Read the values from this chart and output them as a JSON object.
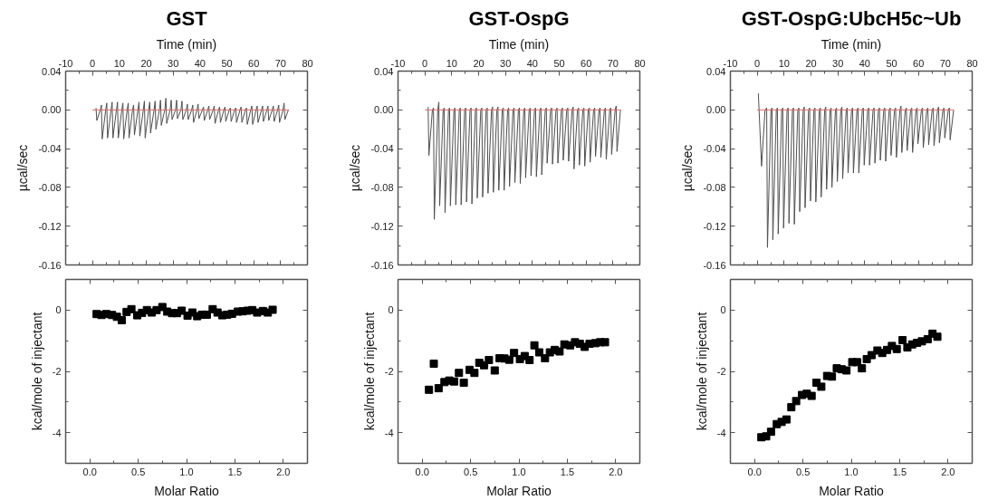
{
  "chart_data": [
    {
      "type": "line",
      "title": "GST",
      "xlabel": "Time (min)",
      "ylabel": "µcal/sec",
      "xlim": [
        -10,
        80
      ],
      "xticks": [
        -10,
        {
          "value": -5,
          "label": null
        },
        0,
        {
          "value": 5,
          "label": null
        },
        10,
        {
          "value": 15,
          "label": null
        },
        20,
        {
          "value": 25,
          "label": null
        },
        30,
        {
          "value": 35,
          "label": null
        },
        40,
        {
          "value": 45,
          "label": null
        },
        50,
        {
          "value": 55,
          "label": null
        },
        60,
        {
          "value": 65,
          "label": null
        },
        70,
        {
          "value": 75,
          "label": null
        },
        80
      ],
      "ylim": [
        -0.16,
        0.04
      ],
      "yticks": [
        -0.16,
        {
          "value": -0.14,
          "label": null
        },
        -0.12,
        {
          "value": -0.1,
          "label": null
        },
        -0.08,
        {
          "value": -0.06,
          "label": null
        },
        -0.04,
        {
          "value": -0.02,
          "label": null
        },
        {
          "value": 0,
          "label": "0.00"
        },
        {
          "value": 0.02,
          "label": null
        },
        0.04
      ],
      "series": [
        {
          "color": "#505050",
          "x": [
            1.3,
            1.6,
            2.9,
            3.3,
            3.6,
            4.9,
            5.3,
            5.6,
            6.9,
            7.3,
            7.6,
            8.9,
            9.3,
            9.6,
            10.9,
            11.3,
            11.6,
            12.9,
            13.3,
            13.6,
            14.9,
            15.3,
            15.6,
            16.9,
            17.3,
            17.6,
            18.9,
            19.3,
            19.6,
            20.9,
            21.3,
            21.6,
            22.9,
            23.3,
            23.6,
            24.9,
            25.3,
            25.6,
            26.9,
            27.3,
            27.6,
            28.9,
            29.3,
            29.6,
            30.9,
            31.3,
            31.6,
            32.9,
            33.3,
            33.6,
            34.9,
            35.3,
            35.6,
            36.9,
            37.3,
            37.6,
            38.9,
            39.3,
            39.6,
            40.9,
            41.3,
            41.6,
            42.9,
            43.3,
            43.6,
            44.9,
            45.3,
            45.6,
            46.9,
            47.3,
            47.6,
            48.9,
            49.3,
            49.6,
            50.9,
            51.3,
            51.6,
            52.9,
            53.3,
            53.6,
            54.9,
            55.3,
            55.6,
            56.9,
            57.3,
            57.6,
            58.9,
            59.3,
            59.6,
            60.9,
            61.3,
            61.6,
            62.9,
            63.3,
            63.6,
            64.9,
            65.3,
            65.6,
            66.9,
            67.3,
            67.6,
            68.9,
            69.3,
            69.6,
            70.9,
            71.3,
            71.6,
            72.9
          ],
          "values": [
            0.002,
            -0.011,
            0,
            0.005,
            -0.03,
            0,
            0.007,
            -0.029,
            0,
            0.008,
            -0.029,
            0,
            0.008,
            -0.029,
            0,
            0.007,
            -0.03,
            0,
            0.007,
            -0.029,
            0,
            0.005,
            -0.026,
            0,
            0.008,
            -0.027,
            0,
            0.009,
            -0.029,
            0,
            0.008,
            -0.024,
            0,
            0.009,
            -0.02,
            0,
            0.01,
            -0.016,
            0,
            0.012,
            -0.014,
            0,
            0.01,
            -0.01,
            0,
            0.01,
            -0.009,
            0,
            0.009,
            -0.01,
            0,
            0.006,
            -0.01,
            0,
            0.005,
            -0.013,
            0,
            0.006,
            -0.009,
            0,
            0.003,
            -0.011,
            0,
            0.004,
            -0.01,
            0,
            0.004,
            -0.014,
            0,
            0.003,
            -0.013,
            0,
            0.003,
            -0.012,
            0,
            0.002,
            -0.012,
            0,
            0.002,
            -0.013,
            0,
            0.003,
            -0.013,
            0,
            0.002,
            -0.015,
            0,
            0.004,
            -0.015,
            0,
            0.004,
            -0.013,
            0,
            0.004,
            -0.012,
            0,
            0.004,
            -0.011,
            0,
            0.004,
            -0.012,
            0,
            0.005,
            -0.013,
            0,
            0.007,
            -0.01,
            0
          ]
        },
        {
          "color": "#e06666",
          "x": [
            0,
            73
          ],
          "values": [
            0,
            0
          ]
        }
      ]
    },
    {
      "type": "line",
      "title": "GST-OspG",
      "xlabel": "Time (min)",
      "ylabel": "µcal/sec",
      "xlim": [
        -10,
        80
      ],
      "xticks": [
        -10,
        {
          "value": -5,
          "label": null
        },
        0,
        {
          "value": 5,
          "label": null
        },
        10,
        {
          "value": 15,
          "label": null
        },
        20,
        {
          "value": 25,
          "label": null
        },
        30,
        {
          "value": 35,
          "label": null
        },
        40,
        {
          "value": 45,
          "label": null
        },
        50,
        {
          "value": 55,
          "label": null
        },
        60,
        {
          "value": 65,
          "label": null
        },
        70,
        {
          "value": 75,
          "label": null
        },
        80
      ],
      "ylim": [
        -0.16,
        0.04
      ],
      "yticks": [
        -0.16,
        {
          "value": -0.14,
          "label": null
        },
        -0.12,
        {
          "value": -0.1,
          "label": null
        },
        -0.08,
        {
          "value": -0.06,
          "label": null
        },
        -0.04,
        {
          "value": -0.02,
          "label": null
        },
        {
          "value": 0,
          "label": "0.00"
        },
        {
          "value": 0.02,
          "label": null
        },
        0.04
      ],
      "series": [
        {
          "color": "#505050",
          "x": [
            1.2,
            1.5,
            2.8,
            3.2,
            3.5,
            4.8,
            5.2,
            5.5,
            6.8,
            7.2,
            7.5,
            8.8,
            9.2,
            9.5,
            10.8,
            11.2,
            11.5,
            12.8,
            13.2,
            13.5,
            14.8,
            15.2,
            15.5,
            16.8,
            17.2,
            17.5,
            18.8,
            19.2,
            19.5,
            20.8,
            21.2,
            21.5,
            22.8,
            23.2,
            23.5,
            24.8,
            25.2,
            25.5,
            26.8,
            27.2,
            27.5,
            28.8,
            29.2,
            29.5,
            30.8,
            31.2,
            31.5,
            32.8,
            33.2,
            33.5,
            34.8,
            35.2,
            35.5,
            36.8,
            37.2,
            37.5,
            38.8,
            39.2,
            39.5,
            40.8,
            41.2,
            41.5,
            42.8,
            43.2,
            43.5,
            44.8,
            45.2,
            45.5,
            46.8,
            47.2,
            47.5,
            48.8,
            49.2,
            49.5,
            50.8,
            51.2,
            51.5,
            52.8,
            53.2,
            53.5,
            54.8,
            55.2,
            55.5,
            56.8,
            57.2,
            57.5,
            58.8,
            59.2,
            59.5,
            60.8,
            61.2,
            61.5,
            62.8,
            63.2,
            63.5,
            64.8,
            65.2,
            65.5,
            66.8,
            67.2,
            67.5,
            68.8,
            69.2,
            69.5,
            70.8,
            71.2,
            71.5,
            72.8
          ],
          "values": [
            0.003,
            -0.047,
            0,
            0.002,
            -0.113,
            0,
            0.008,
            -0.099,
            0,
            0.002,
            -0.106,
            0,
            0.002,
            -0.099,
            0,
            0.002,
            -0.098,
            0,
            0.002,
            -0.098,
            0,
            0.002,
            -0.095,
            0,
            0.002,
            -0.097,
            0,
            0.002,
            -0.091,
            0,
            0.002,
            -0.09,
            0,
            0.002,
            -0.086,
            0,
            0.003,
            -0.085,
            0,
            0.003,
            -0.083,
            0,
            0.002,
            -0.083,
            0,
            0.002,
            -0.079,
            0,
            0.002,
            -0.075,
            0,
            0.002,
            -0.076,
            0,
            0.002,
            -0.07,
            0,
            0.002,
            -0.068,
            0,
            0.002,
            -0.069,
            0,
            0.002,
            -0.067,
            0,
            0.002,
            -0.055,
            0,
            0.002,
            -0.056,
            0,
            0.002,
            -0.055,
            0,
            0.002,
            -0.052,
            0,
            0.002,
            -0.053,
            0,
            0.003,
            -0.061,
            0,
            0.002,
            -0.057,
            0,
            0.002,
            -0.058,
            0,
            0.002,
            -0.054,
            0,
            0.002,
            -0.048,
            0,
            0.002,
            -0.049,
            0,
            0.002,
            -0.051,
            0,
            0.002,
            -0.046,
            0,
            0.004,
            -0.043,
            0
          ]
        },
        {
          "color": "#e06666",
          "x": [
            0,
            73
          ],
          "values": [
            0,
            0
          ]
        }
      ]
    },
    {
      "type": "line",
      "title": "GST-OspG:UbcH5c~Ub",
      "xlabel": "Time (min)",
      "ylabel": "µcal/sec",
      "xlim": [
        -10,
        80
      ],
      "xticks": [
        -10,
        {
          "value": -5,
          "label": null
        },
        0,
        {
          "value": 5,
          "label": null
        },
        10,
        {
          "value": 15,
          "label": null
        },
        20,
        {
          "value": 25,
          "label": null
        },
        30,
        {
          "value": 35,
          "label": null
        },
        40,
        {
          "value": 45,
          "label": null
        },
        50,
        {
          "value": 55,
          "label": null
        },
        60,
        {
          "value": 65,
          "label": null
        },
        70,
        {
          "value": 75,
          "label": null
        },
        80
      ],
      "ylim": [
        -0.16,
        0.04
      ],
      "yticks": [
        -0.16,
        {
          "value": -0.14,
          "label": null
        },
        -0.12,
        {
          "value": -0.1,
          "label": null
        },
        -0.08,
        {
          "value": -0.06,
          "label": null
        },
        -0.04,
        {
          "value": -0.02,
          "label": null
        },
        {
          "value": 0,
          "label": "0.00"
        },
        {
          "value": 0.02,
          "label": null
        },
        0.04
      ],
      "series": [
        {
          "color": "#505050",
          "x": [
            0.4,
            1.6,
            2.9,
            3.5,
            3.8,
            5.1,
            5.5,
            5.8,
            7.1,
            7.5,
            7.8,
            9.1,
            9.5,
            9.8,
            11.1,
            11.5,
            11.8,
            13.1,
            13.5,
            13.8,
            15.1,
            15.5,
            15.8,
            17.1,
            17.5,
            17.8,
            19.1,
            19.5,
            19.8,
            21.1,
            21.5,
            21.8,
            23.1,
            23.5,
            23.8,
            25.1,
            25.5,
            25.8,
            27.1,
            27.5,
            27.8,
            29.1,
            29.5,
            29.8,
            31.1,
            31.5,
            31.8,
            33.1,
            33.5,
            33.8,
            35.1,
            35.5,
            35.8,
            37.1,
            37.5,
            37.8,
            39.1,
            39.5,
            39.8,
            41.1,
            41.5,
            41.8,
            43.1,
            43.5,
            43.8,
            45.1,
            45.5,
            45.8,
            47.1,
            47.5,
            47.8,
            49.1,
            49.5,
            49.8,
            51.1,
            51.5,
            51.8,
            53.1,
            53.5,
            53.8,
            55.1,
            55.5,
            55.8,
            57.1,
            57.5,
            57.8,
            59.1,
            59.5,
            59.8,
            61.1,
            61.5,
            61.8,
            63.1,
            63.5,
            63.8,
            65.1,
            65.5,
            65.8,
            67.1,
            67.5,
            67.8,
            69.1,
            69.5,
            69.8,
            71.1,
            71.5,
            71.8,
            73.1
          ],
          "values": [
            0.017,
            -0.058,
            0,
            0.002,
            -0.142,
            0,
            0.002,
            -0.134,
            0,
            0.002,
            -0.128,
            0,
            0.002,
            -0.122,
            0,
            0.002,
            -0.117,
            0,
            0.002,
            -0.118,
            0,
            0.002,
            -0.105,
            0,
            0.003,
            -0.101,
            0,
            0.002,
            -0.094,
            0,
            0.002,
            -0.095,
            0,
            0.002,
            -0.09,
            0,
            0.003,
            -0.082,
            0,
            0.002,
            -0.08,
            0,
            0.002,
            -0.074,
            0,
            0.003,
            -0.071,
            0,
            0.002,
            -0.065,
            0,
            0.002,
            -0.065,
            0,
            0.002,
            -0.065,
            0,
            0.002,
            -0.057,
            0,
            0.002,
            -0.057,
            0,
            0.002,
            -0.055,
            0,
            0.002,
            -0.052,
            0,
            0.002,
            -0.053,
            0,
            0.002,
            -0.047,
            0,
            0.002,
            -0.049,
            0,
            0.004,
            -0.044,
            0,
            0.002,
            -0.042,
            0,
            0.002,
            -0.044,
            0,
            0.002,
            -0.035,
            0,
            0.002,
            -0.039,
            0,
            0.002,
            -0.036,
            0,
            0.002,
            -0.037,
            0,
            0.003,
            -0.034,
            0,
            0.002,
            -0.029,
            0,
            0.002,
            -0.031,
            0
          ]
        },
        {
          "color": "#e06666",
          "x": [
            0,
            73
          ],
          "values": [
            0,
            0
          ]
        }
      ]
    },
    {
      "type": "scatter",
      "marker": "square",
      "xlabel": "Molar Ratio",
      "ylabel": "kcal/mole of injectant",
      "xlim": [
        -0.25,
        2.25
      ],
      "xticks": [
        {
          "value": -0.25,
          "label": null
        },
        {
          "value": 0,
          "label": "0.0"
        },
        {
          "value": 0.25,
          "label": null
        },
        0.5,
        {
          "value": 0.75,
          "label": null
        },
        {
          "value": 1,
          "label": "1.0"
        },
        {
          "value": 1.25,
          "label": null
        },
        1.5,
        {
          "value": 1.75,
          "label": null
        },
        {
          "value": 2,
          "label": "2.0"
        },
        {
          "value": 2.25,
          "label": null
        }
      ],
      "ylim": [
        -5,
        1
      ],
      "yticks": [
        {
          "value": -5,
          "label": null
        },
        -4,
        {
          "value": -3,
          "label": null
        },
        -2,
        {
          "value": -1,
          "label": null
        },
        0,
        {
          "value": 1,
          "label": null
        }
      ],
      "x": [
        0.07,
        0.12,
        0.17,
        0.23,
        0.28,
        0.33,
        0.38,
        0.43,
        0.49,
        0.54,
        0.59,
        0.64,
        0.69,
        0.75,
        0.8,
        0.85,
        0.9,
        0.95,
        1.01,
        1.06,
        1.11,
        1.16,
        1.21,
        1.27,
        1.32,
        1.37,
        1.42,
        1.47,
        1.53,
        1.58,
        1.63,
        1.68,
        1.73,
        1.79,
        1.84,
        1.89
      ],
      "series": [
        {
          "color": "#000000",
          "values": [
            -0.13,
            -0.16,
            -0.13,
            -0.16,
            -0.22,
            -0.33,
            -0.06,
            0.03,
            -0.17,
            -0.09,
            0.0,
            -0.08,
            0.0,
            0.1,
            -0.05,
            -0.1,
            -0.1,
            -0.02,
            -0.18,
            -0.08,
            -0.2,
            -0.15,
            -0.15,
            0.03,
            -0.08,
            -0.17,
            -0.15,
            -0.12,
            -0.05,
            -0.04,
            -0.02,
            0.0,
            -0.08,
            -0.03,
            -0.08,
            0.01
          ]
        }
      ]
    },
    {
      "type": "scatter",
      "marker": "square",
      "xlabel": "Molar Ratio",
      "ylabel": "kcal/mole of injectant",
      "xlim": [
        -0.25,
        2.25
      ],
      "xticks": [
        {
          "value": -0.25,
          "label": null
        },
        {
          "value": 0,
          "label": "0.0"
        },
        {
          "value": 0.25,
          "label": null
        },
        0.5,
        {
          "value": 0.75,
          "label": null
        },
        {
          "value": 1,
          "label": "1.0"
        },
        {
          "value": 1.25,
          "label": null
        },
        1.5,
        {
          "value": 1.75,
          "label": null
        },
        {
          "value": 2,
          "label": "2.0"
        },
        {
          "value": 2.25,
          "label": null
        }
      ],
      "ylim": [
        -5,
        1
      ],
      "yticks": [
        {
          "value": -5,
          "label": null
        },
        -4,
        {
          "value": -3,
          "label": null
        },
        -2,
        {
          "value": -1,
          "label": null
        },
        0,
        {
          "value": 1,
          "label": null
        }
      ],
      "x": [
        0.07,
        0.12,
        0.17,
        0.23,
        0.28,
        0.33,
        0.38,
        0.43,
        0.49,
        0.54,
        0.59,
        0.64,
        0.69,
        0.75,
        0.8,
        0.85,
        0.9,
        0.95,
        1.01,
        1.06,
        1.11,
        1.16,
        1.21,
        1.27,
        1.32,
        1.37,
        1.42,
        1.47,
        1.53,
        1.58,
        1.63,
        1.68,
        1.73,
        1.79,
        1.84,
        1.89
      ],
      "series": [
        {
          "color": "#000000",
          "values": [
            -2.6,
            -1.75,
            -2.55,
            -2.35,
            -2.3,
            -2.33,
            -2.05,
            -2.37,
            -1.95,
            -2.05,
            -1.72,
            -1.8,
            -1.63,
            -1.97,
            -1.57,
            -1.58,
            -1.62,
            -1.4,
            -1.6,
            -1.5,
            -1.63,
            -1.15,
            -1.38,
            -1.57,
            -1.38,
            -1.3,
            -1.35,
            -1.12,
            -1.15,
            -1.05,
            -1.1,
            -1.2,
            -1.1,
            -1.08,
            -1.05,
            -1.05
          ]
        }
      ]
    },
    {
      "type": "scatter",
      "marker": "square",
      "xlabel": "Molar Ratio",
      "ylabel": "kcal/mole of injectant",
      "xlim": [
        -0.25,
        2.25
      ],
      "xticks": [
        {
          "value": -0.25,
          "label": null
        },
        {
          "value": 0,
          "label": "0.0"
        },
        {
          "value": 0.25,
          "label": null
        },
        0.5,
        {
          "value": 0.75,
          "label": null
        },
        {
          "value": 1,
          "label": "1.0"
        },
        {
          "value": 1.25,
          "label": null
        },
        1.5,
        {
          "value": 1.75,
          "label": null
        },
        {
          "value": 2,
          "label": "2.0"
        },
        {
          "value": 2.25,
          "label": null
        }
      ],
      "ylim": [
        -5,
        1
      ],
      "yticks": [
        {
          "value": -5,
          "label": null
        },
        -4,
        {
          "value": -3,
          "label": null
        },
        -2,
        {
          "value": -1,
          "label": null
        },
        0,
        {
          "value": 1,
          "label": null
        }
      ],
      "x": [
        0.07,
        0.12,
        0.17,
        0.23,
        0.28,
        0.33,
        0.38,
        0.43,
        0.49,
        0.54,
        0.59,
        0.64,
        0.69,
        0.75,
        0.8,
        0.85,
        0.9,
        0.95,
        1.01,
        1.06,
        1.11,
        1.16,
        1.21,
        1.27,
        1.32,
        1.37,
        1.42,
        1.47,
        1.53,
        1.58,
        1.63,
        1.68,
        1.73,
        1.79,
        1.84,
        1.89
      ],
      "series": [
        {
          "color": "#000000",
          "values": [
            -4.15,
            -4.12,
            -3.97,
            -3.72,
            -3.65,
            -3.57,
            -3.17,
            -2.97,
            -2.77,
            -2.73,
            -2.8,
            -2.37,
            -2.5,
            -2.15,
            -2.17,
            -1.9,
            -1.93,
            -1.97,
            -1.7,
            -1.7,
            -1.9,
            -1.6,
            -1.47,
            -1.32,
            -1.4,
            -1.3,
            -1.17,
            -1.27,
            -0.98,
            -1.22,
            -1.12,
            -1.07,
            -1.02,
            -0.95,
            -0.77,
            -0.87
          ]
        }
      ]
    }
  ]
}
